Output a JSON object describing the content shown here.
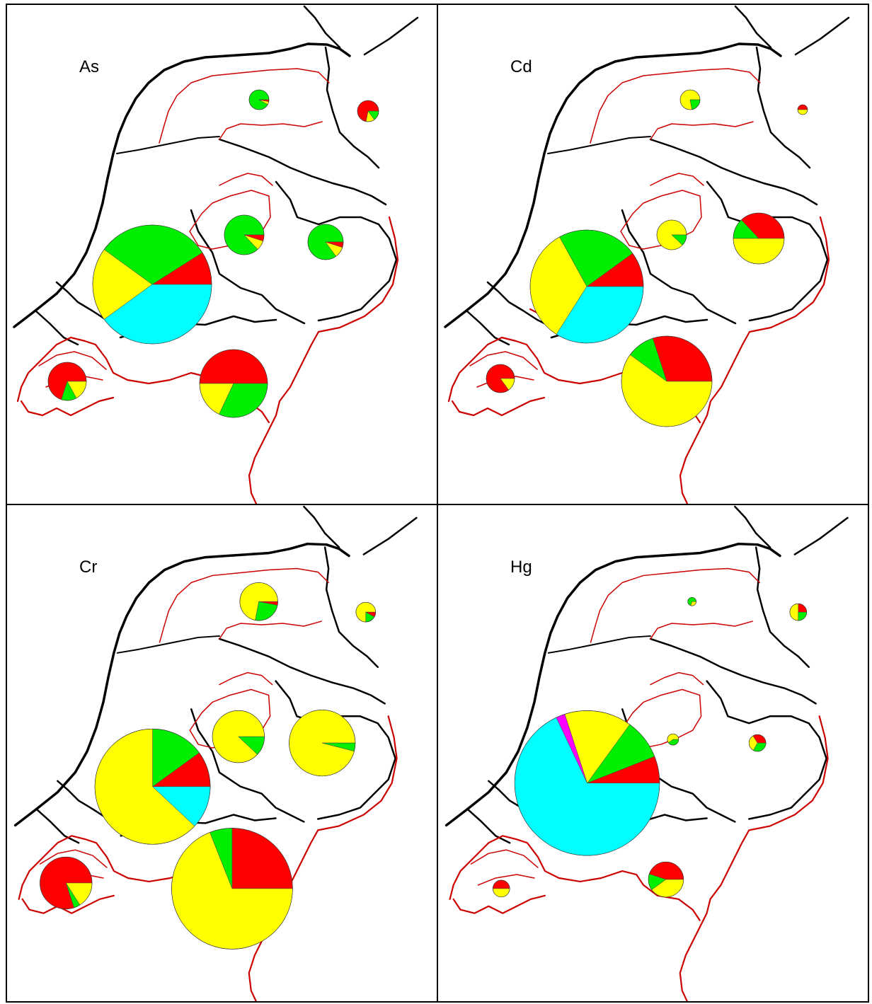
{
  "colors": {
    "red": "#ff0000",
    "green": "#00ee00",
    "yellow": "#ffff00",
    "cyan": "#00ffff",
    "magenta": "#ff00ff",
    "outline_black": "#000000",
    "outline_red": "#cc0000"
  },
  "panels": [
    {
      "label": "As",
      "pies": [
        {
          "region": "friesland",
          "slices": [
            {
              "c": "green",
              "v": 0.92
            },
            {
              "c": "yellow",
              "v": 0.05
            },
            {
              "c": "red",
              "v": 0.03
            }
          ]
        },
        {
          "region": "groningen",
          "slices": [
            {
              "c": "red",
              "v": 0.72
            },
            {
              "c": "yellow",
              "v": 0.13
            },
            {
              "c": "green",
              "v": 0.15
            }
          ]
        },
        {
          "region": "flevoland",
          "slices": [
            {
              "c": "green",
              "v": 0.87
            },
            {
              "c": "yellow",
              "v": 0.08
            },
            {
              "c": "red",
              "v": 0.05
            }
          ]
        },
        {
          "region": "overijssel",
          "slices": [
            {
              "c": "green",
              "v": 0.85
            },
            {
              "c": "yellow",
              "v": 0.1
            },
            {
              "c": "red",
              "v": 0.05
            }
          ]
        },
        {
          "region": "rijnmond",
          "slices": [
            {
              "c": "red",
              "v": 0.09
            },
            {
              "c": "green",
              "v": 0.31
            },
            {
              "c": "yellow",
              "v": 0.2
            },
            {
              "c": "cyan",
              "v": 0.4
            }
          ]
        },
        {
          "region": "zeeland",
          "slices": [
            {
              "c": "red",
              "v": 0.7
            },
            {
              "c": "green",
              "v": 0.13
            },
            {
              "c": "yellow",
              "v": 0.17
            }
          ]
        },
        {
          "region": "brabant",
          "slices": [
            {
              "c": "red",
              "v": 0.5
            },
            {
              "c": "yellow",
              "v": 0.18
            },
            {
              "c": "green",
              "v": 0.32
            }
          ]
        }
      ]
    },
    {
      "label": "Cd",
      "pies": [
        {
          "region": "friesland",
          "slices": [
            {
              "c": "yellow",
              "v": 0.78
            },
            {
              "c": "green",
              "v": 0.22
            }
          ]
        },
        {
          "region": "groningen",
          "slices": [
            {
              "c": "red",
              "v": 0.5
            },
            {
              "c": "yellow",
              "v": 0.5
            }
          ]
        },
        {
          "region": "flevoland",
          "slices": [
            {
              "c": "yellow",
              "v": 0.88
            },
            {
              "c": "green",
              "v": 0.12
            }
          ]
        },
        {
          "region": "overijssel",
          "slices": [
            {
              "c": "red",
              "v": 0.37
            },
            {
              "c": "green",
              "v": 0.13
            },
            {
              "c": "yellow",
              "v": 0.5
            }
          ]
        },
        {
          "region": "rijnmond",
          "slices": [
            {
              "c": "red",
              "v": 0.1
            },
            {
              "c": "green",
              "v": 0.23
            },
            {
              "c": "yellow",
              "v": 0.33
            },
            {
              "c": "cyan",
              "v": 0.34
            }
          ]
        },
        {
          "region": "zeeland",
          "slices": [
            {
              "c": "red",
              "v": 0.85
            },
            {
              "c": "yellow",
              "v": 0.15
            }
          ]
        },
        {
          "region": "brabant",
          "slices": [
            {
              "c": "red",
              "v": 0.3
            },
            {
              "c": "green",
              "v": 0.1
            },
            {
              "c": "yellow",
              "v": 0.6
            }
          ]
        }
      ]
    },
    {
      "label": "Cr",
      "pies": [
        {
          "region": "friesland",
          "slices": [
            {
              "c": "yellow",
              "v": 0.72
            },
            {
              "c": "green",
              "v": 0.25
            },
            {
              "c": "red",
              "v": 0.03
            }
          ]
        },
        {
          "region": "groningen",
          "slices": [
            {
              "c": "yellow",
              "v": 0.75
            },
            {
              "c": "green",
              "v": 0.17
            },
            {
              "c": "red",
              "v": 0.08
            }
          ]
        },
        {
          "region": "flevoland",
          "slices": [
            {
              "c": "yellow",
              "v": 0.88
            },
            {
              "c": "green",
              "v": 0.12
            }
          ]
        },
        {
          "region": "overijssel",
          "slices": [
            {
              "c": "yellow",
              "v": 0.96
            },
            {
              "c": "green",
              "v": 0.04
            }
          ]
        },
        {
          "region": "rijnmond",
          "slices": [
            {
              "c": "red",
              "v": 0.1
            },
            {
              "c": "green",
              "v": 0.15
            },
            {
              "c": "yellow",
              "v": 0.63
            },
            {
              "c": "cyan",
              "v": 0.12
            }
          ]
        },
        {
          "region": "zeeland",
          "slices": [
            {
              "c": "red",
              "v": 0.8
            },
            {
              "c": "green",
              "v": 0.04
            },
            {
              "c": "yellow",
              "v": 0.16
            }
          ]
        },
        {
          "region": "brabant",
          "slices": [
            {
              "c": "red",
              "v": 0.25
            },
            {
              "c": "green",
              "v": 0.06
            },
            {
              "c": "yellow",
              "v": 0.69
            }
          ]
        }
      ]
    },
    {
      "label": "Hg",
      "pies": [
        {
          "region": "friesland",
          "slices": [
            {
              "c": "green",
              "v": 0.7
            },
            {
              "c": "yellow",
              "v": 0.3
            }
          ]
        },
        {
          "region": "groningen",
          "slices": [
            {
              "c": "red",
              "v": 0.25
            },
            {
              "c": "yellow",
              "v": 0.5
            },
            {
              "c": "green",
              "v": 0.25
            }
          ]
        },
        {
          "region": "flevoland",
          "slices": [
            {
              "c": "yellow",
              "v": 0.6
            },
            {
              "c": "green",
              "v": 0.4
            }
          ]
        },
        {
          "region": "overijssel",
          "slices": [
            {
              "c": "red",
              "v": 0.34
            },
            {
              "c": "yellow",
              "v": 0.33
            },
            {
              "c": "green",
              "v": 0.33
            }
          ]
        },
        {
          "region": "rijnmond",
          "slices": [
            {
              "c": "red",
              "v": 0.06
            },
            {
              "c": "green",
              "v": 0.09
            },
            {
              "c": "yellow",
              "v": 0.15
            },
            {
              "c": "magenta",
              "v": 0.02
            },
            {
              "c": "cyan",
              "v": 0.68
            }
          ]
        },
        {
          "region": "zeeland",
          "slices": [
            {
              "c": "red",
              "v": 0.5
            },
            {
              "c": "yellow",
              "v": 0.5
            }
          ]
        },
        {
          "region": "brabant",
          "slices": [
            {
              "c": "red",
              "v": 0.45
            },
            {
              "c": "green",
              "v": 0.15
            },
            {
              "c": "yellow",
              "v": 0.4
            }
          ]
        }
      ]
    }
  ]
}
